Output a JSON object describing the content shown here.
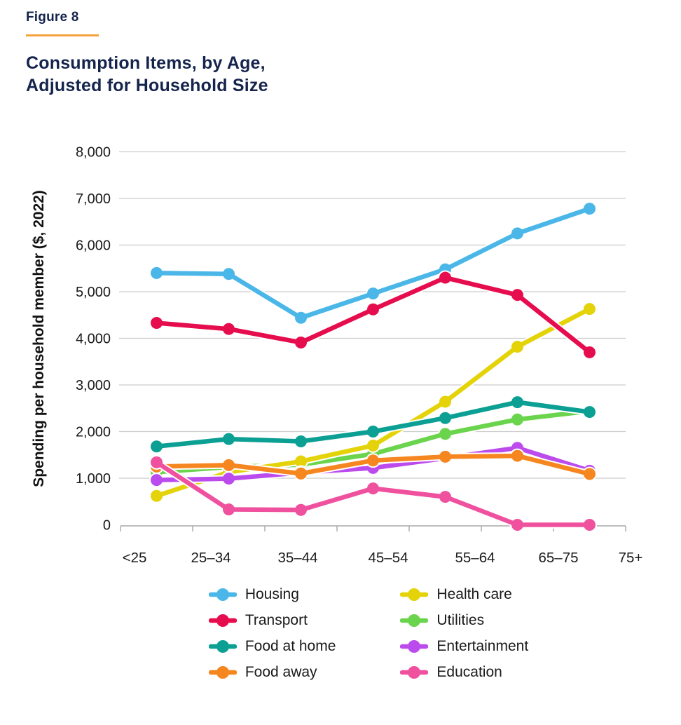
{
  "figure": {
    "label": "Figure 8"
  },
  "title": {
    "line1": "Consumption Items, by Age,",
    "line2": "Adjusted for Household Size"
  },
  "colors": {
    "accent_rule": "#F5A23C",
    "title_navy": "#15244D",
    "gridline": "#cccccc",
    "axis_line": "#a8a8a8",
    "tick_text": "#1a1a1a"
  },
  "chart_data": {
    "type": "line",
    "title": "Consumption Items, by Age, Adjusted for Household Size",
    "categories": [
      "<25",
      "25–34",
      "35–44",
      "45–54",
      "55–64",
      "65–75",
      "75+"
    ],
    "xlabel": "",
    "ylabel": "Spending per household member ($, 2022)",
    "ylim": [
      0,
      8000
    ],
    "y_tick_step": 1000,
    "y_tick_labels": [
      "0",
      "1,000",
      "2,000",
      "3,000",
      "4,000",
      "5,000",
      "6,000",
      "7,000",
      "8,000"
    ],
    "grid": "horizontal",
    "legend_position": "bottom",
    "series": [
      {
        "name": "Housing",
        "color": "#4AB7E8",
        "values": [
          5400,
          5380,
          4440,
          4960,
          5480,
          6250,
          6780
        ]
      },
      {
        "name": "Transport",
        "color": "#E60D4E",
        "values": [
          4330,
          4200,
          3910,
          4620,
          5300,
          4930,
          3700
        ]
      },
      {
        "name": "Food at home",
        "color": "#0BA093",
        "values": [
          1680,
          1840,
          1790,
          2000,
          2290,
          2630,
          2420
        ]
      },
      {
        "name": "Food away",
        "color": "#F6861F",
        "values": [
          1250,
          1280,
          1100,
          1380,
          1460,
          1480,
          1090
        ]
      },
      {
        "name": "Health care",
        "color": "#E4D309",
        "values": [
          620,
          1130,
          1360,
          1700,
          2640,
          3820,
          4630
        ]
      },
      {
        "name": "Utilities",
        "color": "#6BD44D",
        "values": [
          1130,
          1240,
          1290,
          1520,
          1950,
          2260,
          2440
        ]
      },
      {
        "name": "Entertainment",
        "color": "#BC4BEE",
        "values": [
          960,
          990,
          1120,
          1220,
          1430,
          1650,
          1160
        ]
      },
      {
        "name": "Education",
        "color": "#EF519F",
        "values": [
          1340,
          330,
          320,
          780,
          600,
          0,
          0
        ]
      }
    ]
  }
}
